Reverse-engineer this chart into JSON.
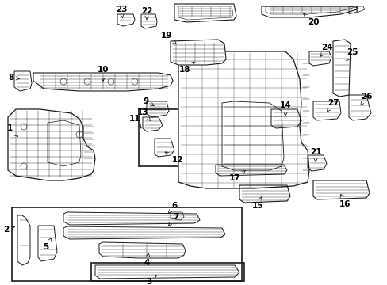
{
  "bg_color": "#ffffff",
  "line_color": "#1a1a1a",
  "label_color": "#000000",
  "fig_width": 4.89,
  "fig_height": 3.6,
  "dpi": 100,
  "lw": 0.7,
  "fs": 7.5
}
